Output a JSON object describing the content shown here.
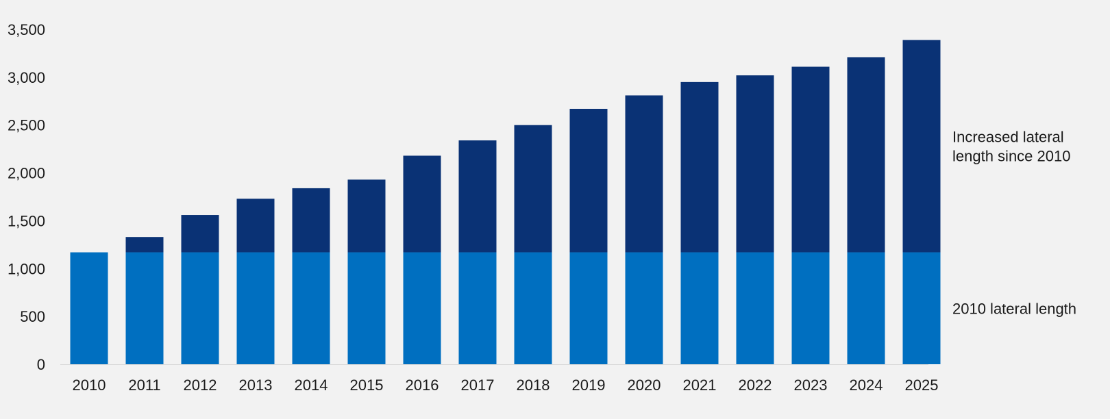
{
  "chart_data": {
    "type": "bar",
    "stacked": true,
    "title": "",
    "xlabel": "",
    "ylabel": "",
    "ylim": [
      0,
      3500
    ],
    "yticks": [
      0,
      500,
      1000,
      1500,
      2000,
      2500,
      3000,
      3500
    ],
    "ytick_labels": [
      "0",
      "500",
      "1,000",
      "1,500",
      "2,000",
      "2,500",
      "3,000",
      "3,500"
    ],
    "grid": false,
    "legend_placement": "right",
    "categories": [
      "2010",
      "2011",
      "2012",
      "2013",
      "2014",
      "2015",
      "2016",
      "2017",
      "2018",
      "2019",
      "2020",
      "2021",
      "2022",
      "2023",
      "2024",
      "2025"
    ],
    "series": [
      {
        "name": "2010 lateral length",
        "color": "#006fc0",
        "values": [
          1170,
          1170,
          1170,
          1170,
          1170,
          1170,
          1170,
          1170,
          1170,
          1170,
          1170,
          1170,
          1170,
          1170,
          1170,
          1170
        ]
      },
      {
        "name": "Increased lateral length since 2010",
        "color": "#0a3275",
        "values": [
          0,
          160,
          390,
          560,
          670,
          760,
          1010,
          1170,
          1330,
          1500,
          1640,
          1780,
          1850,
          1940,
          2040,
          2220
        ]
      }
    ],
    "legend_labels": [
      {
        "series": 1,
        "lines": [
          "Increased lateral",
          "length since 2010"
        ]
      },
      {
        "series": 0,
        "lines": [
          "2010 lateral length"
        ]
      }
    ]
  }
}
